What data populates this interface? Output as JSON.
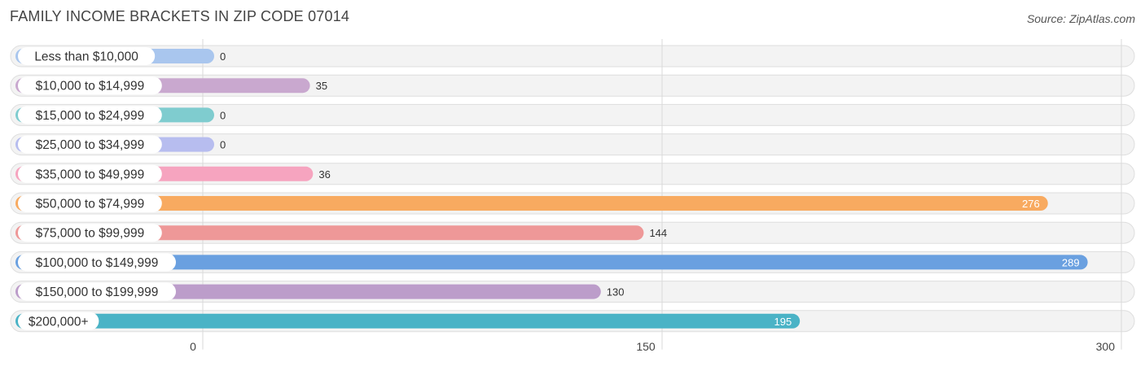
{
  "title": "FAMILY INCOME BRACKETS IN ZIP CODE 07014",
  "source": "Source: ZipAtlas.com",
  "chart_data": {
    "type": "bar",
    "orientation": "horizontal",
    "title": "FAMILY INCOME BRACKETS IN ZIP CODE 07014",
    "categories": [
      "Less than $10,000",
      "$10,000 to $14,999",
      "$15,000 to $24,999",
      "$25,000 to $34,999",
      "$35,000 to $49,999",
      "$50,000 to $74,999",
      "$75,000 to $99,999",
      "$100,000 to $149,999",
      "$150,000 to $199,999",
      "$200,000+"
    ],
    "values": [
      0,
      35,
      0,
      0,
      36,
      276,
      144,
      289,
      130,
      195
    ],
    "colors": [
      "#a9c6ee",
      "#c9a8cf",
      "#7fcccf",
      "#b7bdef",
      "#f6a4bf",
      "#f8aa60",
      "#ee9898",
      "#6aa0e0",
      "#bc9dca",
      "#4ab3c6"
    ],
    "xlim": [
      0,
      300
    ],
    "xticks": [
      0,
      150,
      300
    ],
    "grid": true,
    "legend": "none"
  }
}
